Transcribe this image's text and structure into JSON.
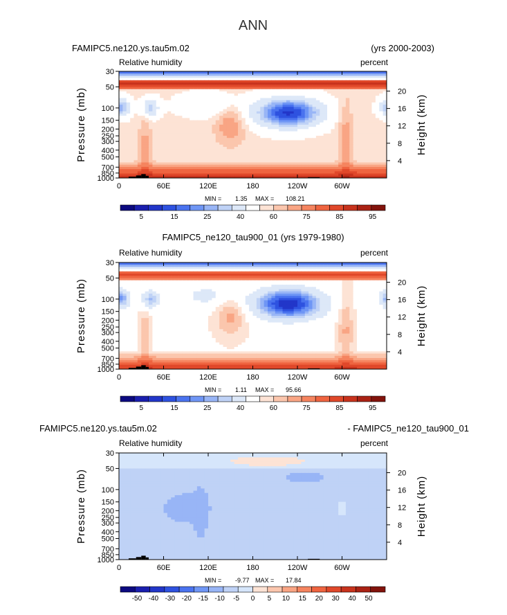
{
  "figure_title": "ANN",
  "colors": {
    "rh_levels": [
      "#0c0a80",
      "#1a1fae",
      "#2236c9",
      "#2e52e0",
      "#4a73ef",
      "#6f96f5",
      "#98b5f6",
      "#bfd2f6",
      "#dde8f8",
      "#ffffff",
      "#fde3d5",
      "#fbc6ad",
      "#f9a584",
      "#f5845f",
      "#ef6440",
      "#e0482a",
      "#c8331d",
      "#aa2214",
      "#82130c"
    ],
    "diff_levels": [
      "#0c0a80",
      "#1a1fae",
      "#2236c9",
      "#2e52e0",
      "#4a73ef",
      "#6f96f5",
      "#98b5f6",
      "#bfd2f6",
      "#d6e6fb",
      "#fde3d5",
      "#fbc6ad",
      "#f9a584",
      "#f5845f",
      "#ef6440",
      "#e0482a",
      "#c8331d",
      "#aa2214",
      "#82130c"
    ],
    "topography": "#000000"
  },
  "chart_data": [
    {
      "type": "heatmap",
      "name": "panel-1",
      "title_left": "FAMIPC5.ne120.ys.tau5m.02",
      "title_right": "(yrs 2000-2003)",
      "variable": "Relative humidity",
      "units": "percent",
      "ylabel": "Pressure (mb)",
      "ylabel_right": "Height (km)",
      "x_ticks": [
        "0",
        "60E",
        "120E",
        "180",
        "120W",
        "60W"
      ],
      "x_tick_values": [
        0,
        60,
        120,
        180,
        240,
        300
      ],
      "xlim": [
        0,
        360
      ],
      "y_ticks": [
        "30",
        "50",
        "100",
        "150",
        "200",
        "250",
        "300",
        "400",
        "500",
        "700",
        "850",
        "1000"
      ],
      "y_tick_values": [
        30,
        50,
        100,
        150,
        200,
        250,
        300,
        400,
        500,
        700,
        850,
        1000
      ],
      "ylim": [
        30,
        1000
      ],
      "height_ticks": [
        "20",
        "16",
        "12",
        "8",
        "4"
      ],
      "height_tick_values": [
        20,
        16,
        12,
        8,
        4
      ],
      "min_label": "MIN =",
      "min_value": "1.35",
      "max_label": "MAX =",
      "max_value": "108.21",
      "colorbar_labels": [
        "5",
        "15",
        "25",
        "40",
        "60",
        "75",
        "85",
        "95"
      ],
      "levels": [
        5,
        10,
        15,
        20,
        25,
        30,
        35,
        40,
        50,
        60,
        65,
        70,
        75,
        80,
        85,
        90,
        95,
        100
      ],
      "offset": 0
    },
    {
      "type": "heatmap",
      "name": "panel-2",
      "title_center": "FAMIPC5_ne120_tau900_01 (yrs 1979-1980)",
      "variable": "Relative humidity",
      "units": "percent",
      "ylabel": "Pressure (mb)",
      "ylabel_right": "Height (km)",
      "x_ticks": [
        "0",
        "60E",
        "120E",
        "180",
        "120W",
        "60W"
      ],
      "x_tick_values": [
        0,
        60,
        120,
        180,
        240,
        300
      ],
      "xlim": [
        0,
        360
      ],
      "y_ticks": [
        "30",
        "50",
        "100",
        "150",
        "200",
        "250",
        "300",
        "400",
        "500",
        "700",
        "850",
        "1000"
      ],
      "y_tick_values": [
        30,
        50,
        100,
        150,
        200,
        250,
        300,
        400,
        500,
        700,
        850,
        1000
      ],
      "ylim": [
        30,
        1000
      ],
      "height_ticks": [
        "20",
        "16",
        "12",
        "8",
        "4"
      ],
      "height_tick_values": [
        20,
        16,
        12,
        8,
        4
      ],
      "min_label": "MIN =",
      "min_value": "1.11",
      "max_label": "MAX =",
      "max_value": "95.66",
      "colorbar_labels": [
        "5",
        "15",
        "25",
        "40",
        "60",
        "75",
        "85",
        "95"
      ],
      "levels": [
        5,
        10,
        15,
        20,
        25,
        30,
        35,
        40,
        50,
        60,
        65,
        70,
        75,
        80,
        85,
        90,
        95,
        100
      ],
      "offset": -3
    },
    {
      "type": "heatmap",
      "name": "panel-3",
      "title_left": "FAMIPC5.ne120.ys.tau5m.02",
      "title_right": "- FAMIPC5_ne120_tau900_01",
      "variable": "Relative humidity",
      "units": "percent",
      "ylabel": "Pressure (mb)",
      "ylabel_right": "Height (km)",
      "x_ticks": [
        "0",
        "60E",
        "120E",
        "180",
        "120W",
        "60W"
      ],
      "x_tick_values": [
        0,
        60,
        120,
        180,
        240,
        300
      ],
      "xlim": [
        0,
        360
      ],
      "y_ticks": [
        "30",
        "50",
        "100",
        "150",
        "200",
        "250",
        "300",
        "400",
        "500",
        "700",
        "850",
        "1000"
      ],
      "y_tick_values": [
        30,
        50,
        100,
        150,
        200,
        250,
        300,
        400,
        500,
        700,
        850,
        1000
      ],
      "ylim": [
        30,
        1000
      ],
      "height_ticks": [
        "20",
        "16",
        "12",
        "8",
        "4"
      ],
      "height_tick_values": [
        20,
        16,
        12,
        8,
        4
      ],
      "min_label": "MIN =",
      "min_value": "-9.77",
      "max_label": "MAX =",
      "max_value": "17.84",
      "colorbar_labels": [
        "-50",
        "-40",
        "-30",
        "-20",
        "-15",
        "-10",
        "-5",
        "0",
        "5",
        "10",
        "15",
        "20",
        "30",
        "40",
        "50"
      ],
      "levels": [
        -50,
        -40,
        -30,
        -20,
        -15,
        -10,
        -5,
        0,
        5,
        10,
        15,
        20,
        30,
        40,
        50
      ],
      "diff": true
    }
  ]
}
